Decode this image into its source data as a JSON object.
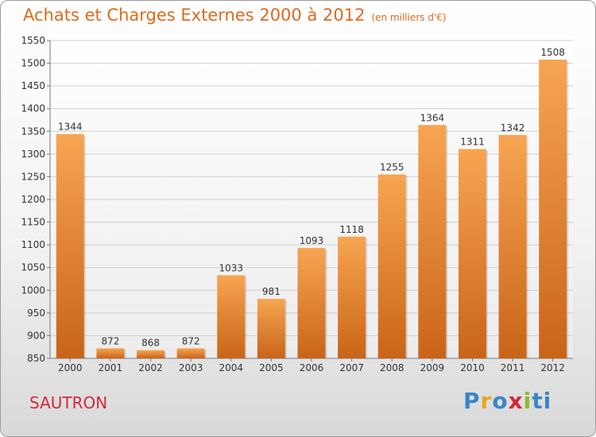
{
  "header": {
    "title": "Achats et Charges Externes 2000 à 2012",
    "subtitle": "(en milliers d'€)"
  },
  "footer": {
    "place": "SAUTRON",
    "logo_letters": [
      "P",
      "r",
      "o",
      "x",
      "i",
      "ti"
    ]
  },
  "colors": {
    "bar_top": "#f7a552",
    "bar_bottom": "#c96418",
    "title": "#e06a1b",
    "place": "#d2293b"
  },
  "chart_data": {
    "type": "bar",
    "categories": [
      "2000",
      "2001",
      "2002",
      "2003",
      "2004",
      "2005",
      "2006",
      "2007",
      "2008",
      "2009",
      "2010",
      "2011",
      "2012"
    ],
    "values": [
      1344,
      872,
      868,
      872,
      1033,
      981,
      1093,
      1118,
      1255,
      1364,
      1311,
      1342,
      1508
    ],
    "title": "Achats et Charges Externes 2000 à 2012",
    "subtitle": "(en milliers d'€)",
    "xlabel": "",
    "ylabel": "",
    "ylim": [
      850,
      1550
    ],
    "yticks": [
      850,
      900,
      950,
      1000,
      1050,
      1100,
      1150,
      1200,
      1250,
      1300,
      1350,
      1400,
      1450,
      1500,
      1550
    ],
    "grid": true,
    "legend": "none"
  }
}
